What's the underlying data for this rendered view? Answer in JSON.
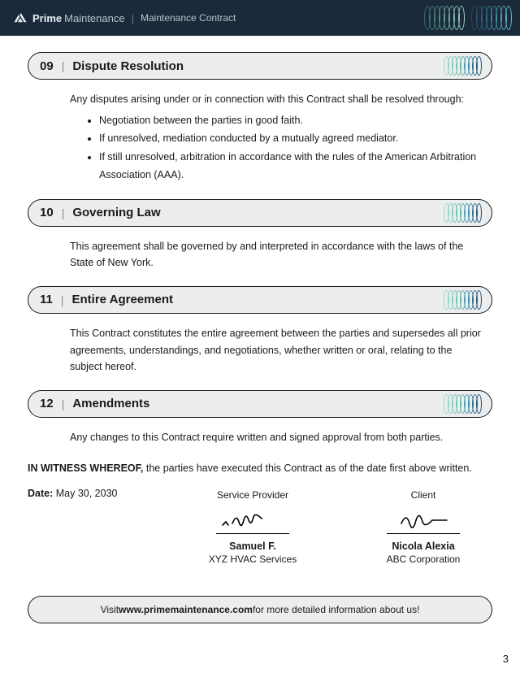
{
  "header": {
    "brand_bold": "Prime",
    "brand_light": "Maintenance",
    "separator": "|",
    "doc_title": "Maintenance Contract",
    "bg_color": "#1a2a3a",
    "oval_colors_group1": [
      "#3a6a7a",
      "#3a7a7a",
      "#4a8a7a",
      "#5a9a8a",
      "#6aaa9a",
      "#7abaa8",
      "#8ac5b5",
      "#9ad0c0"
    ],
    "oval_colors_group2": [
      "#2a4a5a",
      "#2a5a6a",
      "#2a6a7a",
      "#3a7a8a",
      "#3a8a9a",
      "#4a9aaa",
      "#5aaabb",
      "#6abacc"
    ]
  },
  "sections": [
    {
      "num": "09",
      "title": "Dispute Resolution",
      "intro": "Any disputes arising under or in connection with this Contract shall be resolved through:",
      "bullets": [
        "Negotiation between the parties in good faith.",
        "If unresolved, mediation conducted by a mutually agreed mediator.",
        "If still unresolved, arbitration in accordance with the rules of the American Arbitration Association (AAA)."
      ]
    },
    {
      "num": "10",
      "title": "Governing Law",
      "body": "This agreement shall be governed by and interpreted in accordance with the laws of the State of New York."
    },
    {
      "num": "11",
      "title": "Entire Agreement",
      "body": "This Contract constitutes the entire agreement between the parties and supersedes all prior agreements, understandings, and negotiations, whether written or oral, relating to the subject hereof."
    },
    {
      "num": "12",
      "title": "Amendments",
      "body": "Any changes to this Contract require written and signed approval from both parties."
    }
  ],
  "section_header_style": {
    "bg_color": "#eceded",
    "border_color": "#1a1a1a",
    "oval_colors": [
      "#9ad8c8",
      "#8ad0c0",
      "#7ac8b8",
      "#6ac0b0",
      "#5ab0b0",
      "#4a9ab0",
      "#3a85a8",
      "#2a6a90",
      "#1a5078"
    ]
  },
  "witness": {
    "lead": "IN WITNESS WHEREOF,",
    "rest": " the parties have executed this Contract as of the date first above written."
  },
  "date": {
    "label": "Date:",
    "value": " May 30, 2030"
  },
  "signatures": {
    "provider": {
      "role": "Service Provider",
      "name": "Samuel F.",
      "org": "XYZ HVAC Services"
    },
    "client": {
      "role": "Client",
      "name": "Nicola Alexia",
      "org": "ABC Corporation"
    }
  },
  "footer": {
    "pre": "Visit ",
    "link": "www.primemaintenance.com",
    "post": " for more detailed information about us!"
  },
  "page_number": "3"
}
